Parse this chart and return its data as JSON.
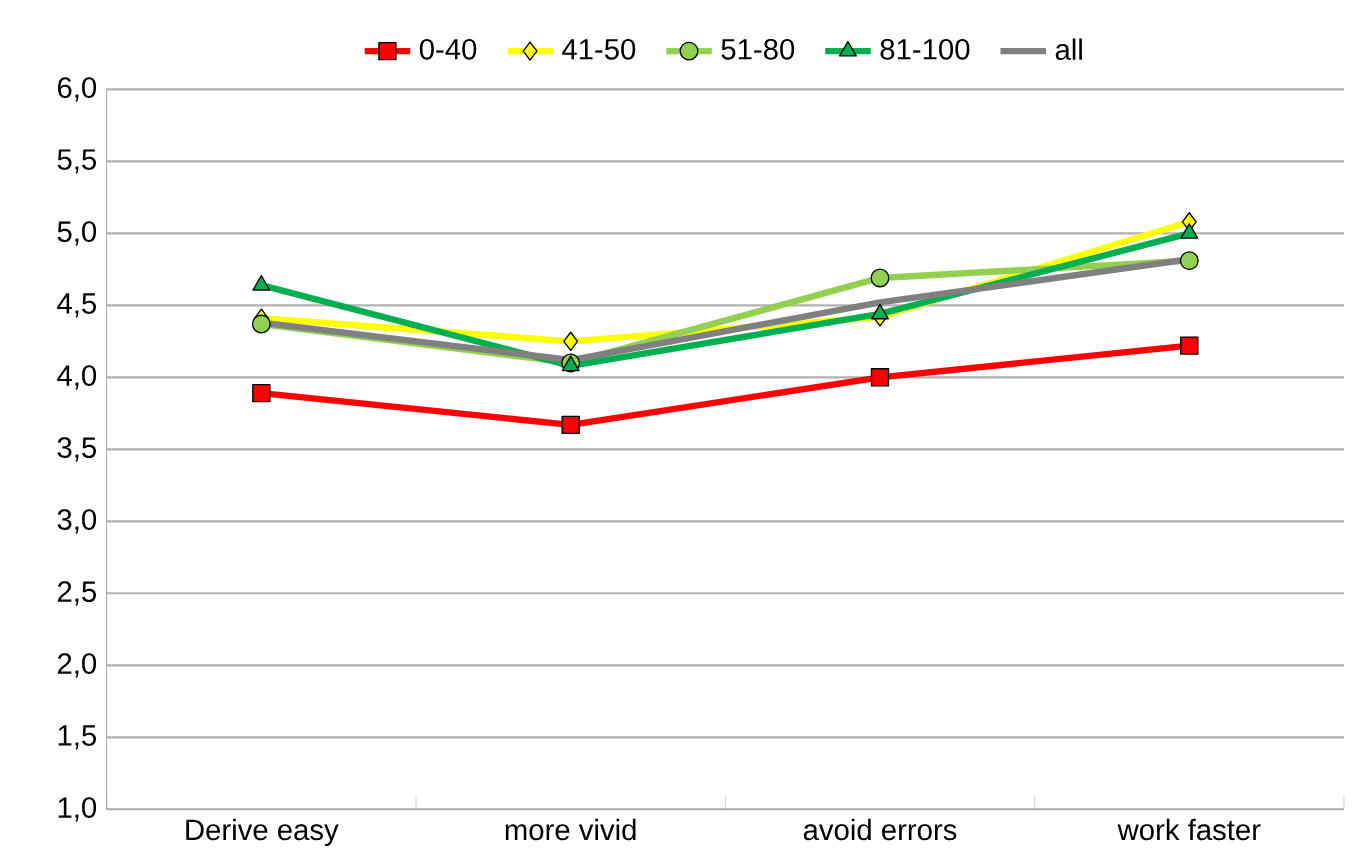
{
  "chart_data": {
    "type": "line",
    "categories": [
      "Derive easy",
      "more vivid",
      "avoid errors",
      "work faster"
    ],
    "series": [
      {
        "name": "0-40",
        "color": "#ff0000",
        "marker": "square",
        "values": [
          3.89,
          3.67,
          4.0,
          4.22
        ]
      },
      {
        "name": "41-50",
        "color": "#ffff00",
        "marker": "diamond",
        "values": [
          4.41,
          4.25,
          4.42,
          5.08
        ]
      },
      {
        "name": "51-80",
        "color": "#92d050",
        "marker": "circle",
        "values": [
          4.37,
          4.1,
          4.69,
          4.81
        ]
      },
      {
        "name": "81-100",
        "color": "#00b050",
        "marker": "triangle",
        "values": [
          4.64,
          4.08,
          4.44,
          5.0
        ]
      },
      {
        "name": "all",
        "color": "#808080",
        "marker": "none",
        "values": [
          4.38,
          4.12,
          4.52,
          4.82
        ]
      }
    ],
    "ylim": [
      1.0,
      6.0
    ],
    "yticks": [
      {
        "value": 1.0,
        "label": "1,0"
      },
      {
        "value": 1.5,
        "label": "1,5"
      },
      {
        "value": 2.0,
        "label": "2,0"
      },
      {
        "value": 2.5,
        "label": "2,5"
      },
      {
        "value": 3.0,
        "label": "3,0"
      },
      {
        "value": 3.5,
        "label": "3,5"
      },
      {
        "value": 4.0,
        "label": "4,0"
      },
      {
        "value": 4.5,
        "label": "4,5"
      },
      {
        "value": 5.0,
        "label": "5,0"
      },
      {
        "value": 5.5,
        "label": "5,5"
      },
      {
        "value": 6.0,
        "label": "6,0"
      }
    ],
    "grid": "y",
    "legend": "top"
  }
}
